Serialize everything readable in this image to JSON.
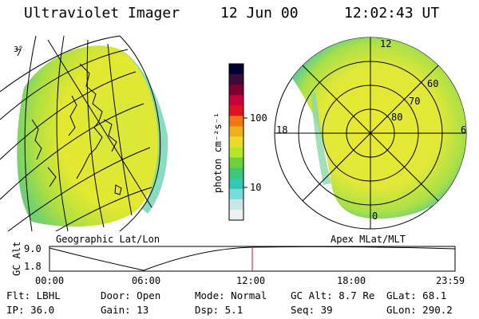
{
  "header": {
    "title": "Ultraviolet Imager",
    "date": "12 Jun 00",
    "time": "12:02:43 UT"
  },
  "left_panel": {
    "caption": "Geographic Lat/Lon",
    "corner_label": "3°"
  },
  "right_panel": {
    "caption": "Apex MLat/MLT",
    "mlt_labels": [
      "12",
      "18",
      "6",
      "0"
    ],
    "lat_labels": [
      "60",
      "70",
      "80"
    ]
  },
  "colorbar": {
    "unit_label": "photon cm⁻²s⁻¹",
    "ticks": [
      "100",
      "10"
    ],
    "colors": [
      "#000033",
      "#3a0a3a",
      "#7a0030",
      "#c8003c",
      "#e0141e",
      "#f07814",
      "#f0b01e",
      "#e8dc28",
      "#b4e628",
      "#6cd23c",
      "#3cc878",
      "#32c8b4",
      "#78dcdc",
      "#c8e6e6",
      "#f0f0f0"
    ]
  },
  "altitude_plot": {
    "ylabel": "GC Alt",
    "y_ticks": [
      "9.0",
      "1.8"
    ],
    "x_ticks": [
      "00:00",
      "06:00",
      "12:00",
      "18:00",
      "23:59"
    ],
    "current_time_fraction": 0.5
  },
  "status": {
    "row1": [
      {
        "key": "Flt:",
        "value": "LBHL"
      },
      {
        "key": "Door:",
        "value": "Open"
      },
      {
        "key": "Mode:",
        "value": "Normal"
      },
      {
        "key": "GC Alt:",
        "value": "8.7 Re"
      },
      {
        "key": "GLat:",
        "value": "68.1"
      }
    ],
    "row2": [
      {
        "key": "IP:",
        "value": "36.0"
      },
      {
        "key": "Gain:",
        "value": "13"
      },
      {
        "key": "Dsp:",
        "value": "5.1"
      },
      {
        "key": "Seq:",
        "value": "39"
      },
      {
        "key": "GLon:",
        "value": "290.2"
      }
    ]
  }
}
